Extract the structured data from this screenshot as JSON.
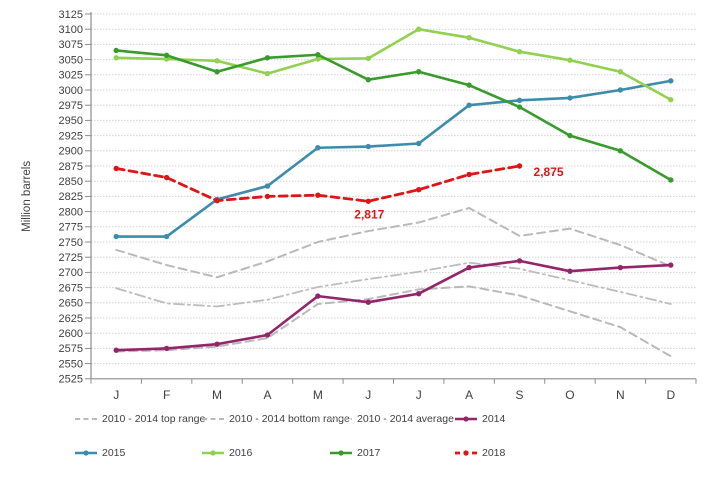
{
  "chart_data": {
    "type": "line",
    "title": "",
    "xlabel": "",
    "ylabel": "Million barrels",
    "ylim": [
      2525,
      3125
    ],
    "ystep": 25,
    "grid": true,
    "legend_position": "bottom",
    "categories": [
      "J",
      "F",
      "M",
      "A",
      "M",
      "J",
      "J",
      "A",
      "S",
      "O",
      "N",
      "D"
    ],
    "series": [
      {
        "key": "top-range",
        "name": "2010 - 2014 top range",
        "color": "#b9b9b9",
        "style": "dashed",
        "width": 2,
        "marker": false,
        "values": [
          2737,
          2712,
          2692,
          2718,
          2750,
          2768,
          2782,
          2806,
          2760,
          2772,
          2745,
          2710
        ]
      },
      {
        "key": "bottom-range",
        "name": "2010 - 2014 bottom range",
        "color": "#b9b9b9",
        "style": "dashed",
        "width": 2,
        "marker": false,
        "values": [
          2570,
          2572,
          2578,
          2592,
          2648,
          2656,
          2672,
          2677,
          2662,
          2636,
          2610,
          2562
        ]
      },
      {
        "key": "average",
        "name": "2010 - 2014 average",
        "color": "#bcbcbc",
        "style": "dashdot",
        "width": 1.8,
        "marker": false,
        "values": [
          2674,
          2649,
          2644,
          2655,
          2676,
          2689,
          2701,
          2716,
          2706,
          2687,
          2668,
          2648
        ]
      },
      {
        "key": "y2014",
        "name": "2014",
        "color": "#93256b",
        "style": "solid",
        "width": 2.6,
        "marker": true,
        "values": [
          2572,
          2575,
          2582,
          2597,
          2661,
          2651,
          2665,
          2708,
          2719,
          2702,
          2708,
          2712
        ]
      },
      {
        "key": "y2015",
        "name": "2015",
        "color": "#3d8cab",
        "style": "solid",
        "width": 2.6,
        "marker": true,
        "values": [
          2759,
          2759,
          2820,
          2842,
          2905,
          2907,
          2912,
          2975,
          2983,
          2987,
          3000,
          3015
        ]
      },
      {
        "key": "y2016",
        "name": "2016",
        "color": "#92d050",
        "style": "solid",
        "width": 2.6,
        "marker": true,
        "values": [
          3053,
          3051,
          3048,
          3027,
          3051,
          3052,
          3100,
          3086,
          3063,
          3049,
          3030,
          2984
        ]
      },
      {
        "key": "y2017",
        "name": "2017",
        "color": "#389b2c",
        "style": "solid",
        "width": 2.6,
        "marker": true,
        "values": [
          3065,
          3057,
          3030,
          3053,
          3058,
          3017,
          3030,
          3008,
          2972,
          2925,
          2900,
          2852
        ]
      },
      {
        "key": "y2018",
        "name": "2018",
        "color": "#e01414",
        "style": "dashed",
        "width": 2.8,
        "marker": true,
        "values": [
          2871,
          2856,
          2818,
          2825,
          2827,
          2817,
          2836,
          2861,
          2875
        ],
        "annotations": [
          {
            "index": 5,
            "text": "2,817",
            "dx": -14,
            "dy": 17
          },
          {
            "index": 8,
            "text": "2,875",
            "dx": 14,
            "dy": 10
          }
        ]
      }
    ]
  },
  "y_axis_label": "Million barrels",
  "legend": {
    "row1": [
      "2010 - 2014 top range",
      "2010 - 2014 bottom range",
      "2010 - 2014 average",
      "2014"
    ],
    "row2": [
      "2015",
      "2016",
      "2017",
      "2018"
    ]
  }
}
